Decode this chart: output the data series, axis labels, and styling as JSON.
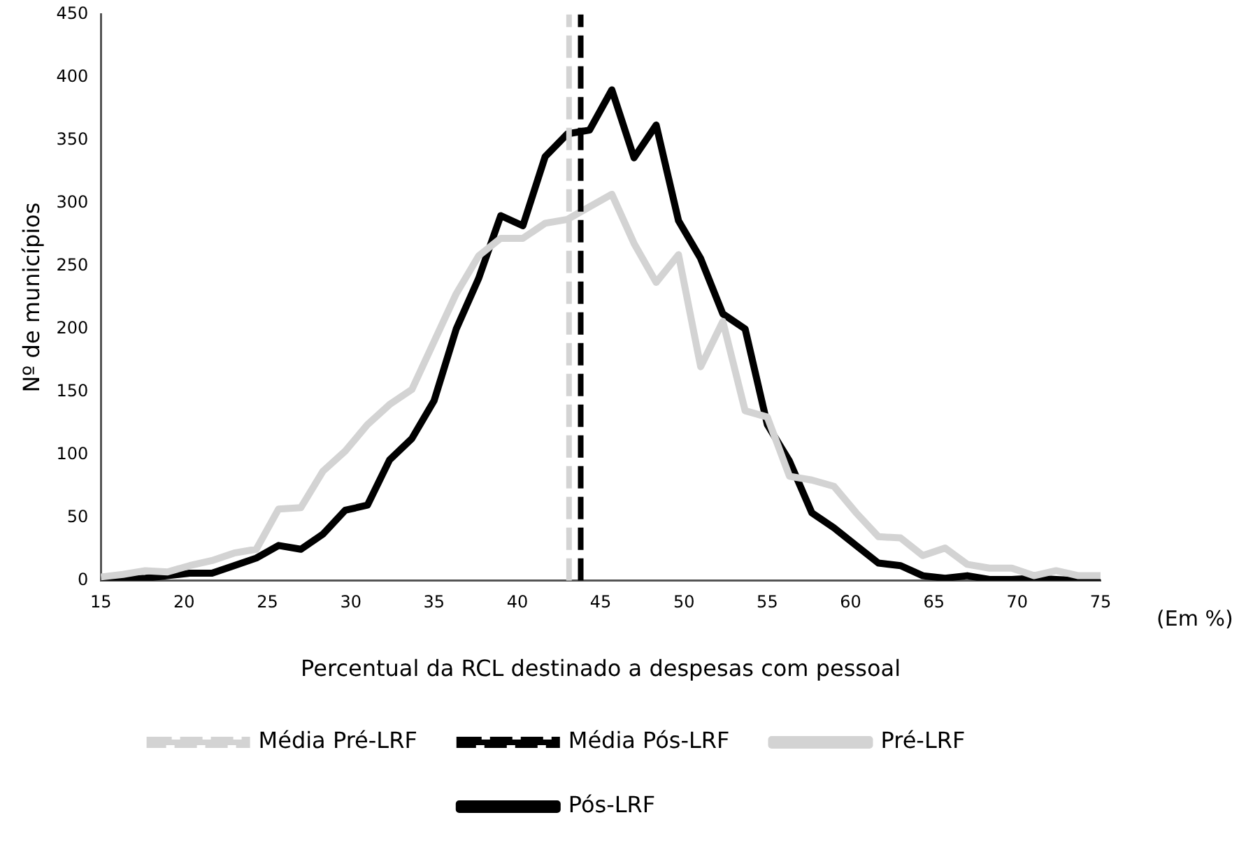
{
  "chart_data": {
    "type": "line",
    "xlabel": "Percentual da RCL destinado a despesas com pessoal",
    "ylabel": "Nº de municípios",
    "x": [
      15,
      16.33,
      17.67,
      19,
      20.33,
      21.67,
      23,
      24.33,
      25.67,
      27,
      28.33,
      29.67,
      31,
      32.33,
      33.67,
      35,
      36.33,
      37.67,
      39,
      40.33,
      41.67,
      43,
      44.33,
      45.67,
      47,
      48.33,
      49.67,
      51,
      52.33,
      53.67,
      55,
      56.33,
      57.67,
      59,
      60.33,
      61.67,
      63,
      64.33,
      65.67,
      67,
      68.33,
      69.67,
      71,
      72.33,
      73.67,
      75
    ],
    "series": [
      {
        "name": "Pré-LRF",
        "color": "#d3d3d3",
        "values": [
          3,
          5,
          8,
          7,
          12,
          16,
          22,
          25,
          57,
          58,
          87,
          103,
          124,
          140,
          152,
          190,
          228,
          258,
          272,
          272,
          284,
          287,
          297,
          307,
          268,
          237,
          259,
          170,
          206,
          135,
          130,
          83,
          80,
          75,
          54,
          35,
          34,
          20,
          26,
          13,
          10,
          10,
          4,
          8,
          4,
          4
        ]
      },
      {
        "name": "Pós-LRF",
        "color": "#000000",
        "values": [
          1,
          1,
          2,
          4,
          6,
          6,
          12,
          18,
          28,
          25,
          37,
          56,
          60,
          96,
          113,
          143,
          200,
          240,
          290,
          282,
          337,
          355,
          358,
          390,
          336,
          362,
          286,
          256,
          212,
          200,
          124,
          95,
          54,
          42,
          28,
          14,
          12,
          4,
          2,
          4,
          1,
          1,
          2,
          1,
          0,
          0
        ]
      }
    ],
    "ref_lines": [
      {
        "axis": "x",
        "value": 43.1,
        "label": "Média Pré-LRF",
        "color": "#d3d3d3",
        "line_style": "dashed"
      },
      {
        "axis": "x",
        "value": 43.8,
        "label": "Média Pós-LRF",
        "color": "#000000",
        "line_style": "dashed"
      }
    ],
    "xlim": [
      15,
      75
    ],
    "xticks": [
      15,
      20,
      25,
      30,
      35,
      40,
      45,
      50,
      55,
      60,
      65,
      70,
      75
    ],
    "ylim": [
      0,
      450
    ],
    "yticks": [
      0,
      50,
      100,
      150,
      200,
      250,
      300,
      350,
      400,
      450
    ],
    "grid": false,
    "legend": "bottom",
    "marker": "none",
    "line_style": "solid",
    "annotations": [
      "(Em %)"
    ]
  }
}
